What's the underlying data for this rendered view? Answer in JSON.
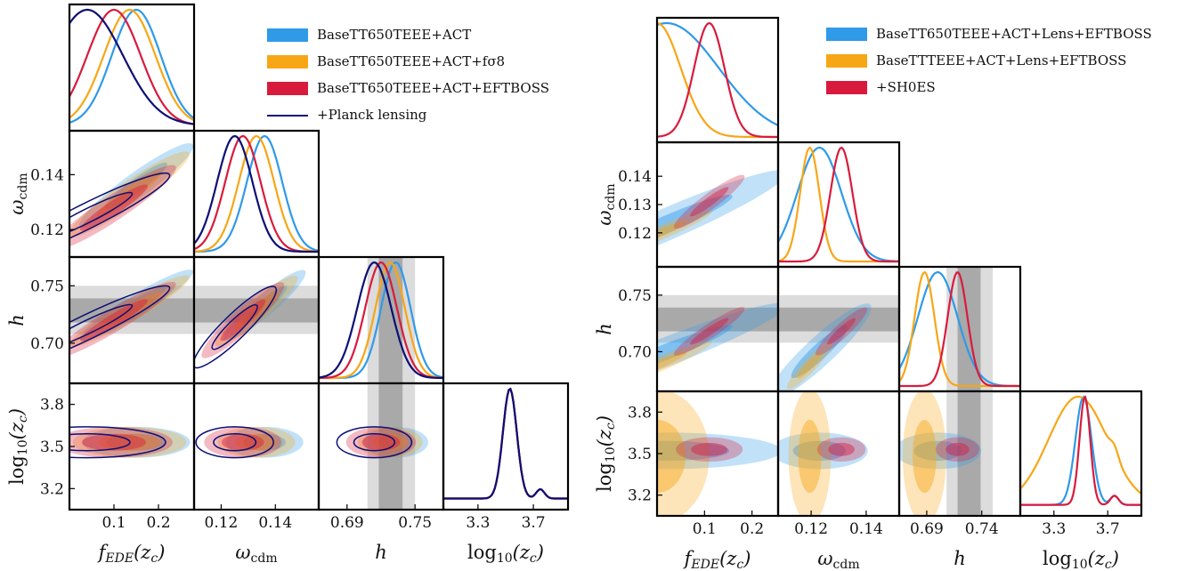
{
  "colors": {
    "blue": "#2e9ae8",
    "orange": "#f7a616",
    "red": "#d81b3c",
    "navy": "#0c0f75",
    "band_outer": "#dcdcdc",
    "band_inner": "#a9a9a9"
  },
  "chart_data": [
    {
      "type": "corner",
      "parameters": [
        "f_EDE(z_c)",
        "omega_cdm",
        "h",
        "log10(z_c)"
      ],
      "axis_labels": {
        "f_EDE": "fEDE(zc)",
        "omega_cdm": "ωcdm",
        "h": "h",
        "log10_zc": "log10(zc)"
      },
      "ranges": {
        "f_EDE": [
          0.0,
          0.28
        ],
        "omega_cdm": [
          0.11,
          0.156
        ],
        "h": [
          0.665,
          0.775
        ],
        "log10_zc": [
          3.05,
          3.95
        ]
      },
      "ticks": {
        "f_EDE": [
          {
            "v": 0.1,
            "t": "0.1"
          },
          {
            "v": 0.2,
            "t": "0.2"
          }
        ],
        "omega_cdm": [
          {
            "v": 0.12,
            "t": "0.12"
          },
          {
            "v": 0.14,
            "t": "0.14"
          }
        ],
        "h": [
          {
            "v": 0.69,
            "t": "0.69"
          },
          {
            "v": 0.75,
            "t": "0.75"
          }
        ],
        "h_y": [
          {
            "v": 0.7,
            "t": "0.70"
          },
          {
            "v": 0.75,
            "t": "0.75"
          }
        ],
        "log10_zc": [
          {
            "v": 3.3,
            "t": "3.3"
          },
          {
            "v": 3.7,
            "t": "3.7"
          }
        ],
        "log10_zc_y": [
          {
            "v": 3.2,
            "t": "3.2"
          },
          {
            "v": 3.5,
            "t": "3.5"
          },
          {
            "v": 3.8,
            "t": "3.8"
          }
        ]
      },
      "prior_band_h": {
        "inner": [
          0.718,
          0.739
        ],
        "outer": [
          0.708,
          0.75
        ]
      },
      "legend": [
        {
          "label": "BaseTT650TEEE+ACT",
          "style": "patch",
          "color": "blue"
        },
        {
          "label": "BaseTT650TEEE+ACT+fσ8",
          "style": "patch",
          "color": "orange"
        },
        {
          "label": "BaseTT650TEEE+ACT+EFTBOSS",
          "style": "patch",
          "color": "red"
        },
        {
          "label": "+Planck lensing",
          "style": "line",
          "color": "navy"
        }
      ],
      "series": [
        {
          "name": "BaseTT650TEEE+ACT",
          "color": "blue",
          "mean": {
            "f_EDE": 0.15,
            "omega_cdm": 0.136,
            "h": 0.733,
            "log10_zc": 3.53
          },
          "sigma": {
            "f_EDE": 0.055,
            "omega_cdm": 0.0065,
            "h": 0.013,
            "log10_zc": 0.05
          }
        },
        {
          "name": "BaseTT650TEEE+ACT+fσ8",
          "color": "orange",
          "mean": {
            "f_EDE": 0.135,
            "omega_cdm": 0.133,
            "h": 0.728,
            "log10_zc": 3.53
          },
          "sigma": {
            "f_EDE": 0.058,
            "omega_cdm": 0.0065,
            "h": 0.013,
            "log10_zc": 0.05
          }
        },
        {
          "name": "BaseTT650TEEE+ACT+EFTBOSS",
          "color": "red",
          "mean": {
            "f_EDE": 0.1,
            "omega_cdm": 0.128,
            "h": 0.72,
            "log10_zc": 3.53
          },
          "sigma": {
            "f_EDE": 0.06,
            "omega_cdm": 0.0065,
            "h": 0.014,
            "log10_zc": 0.05
          }
        },
        {
          "name": "+Planck lensing",
          "color": "navy",
          "mean": {
            "f_EDE": 0.04,
            "omega_cdm": 0.125,
            "h": 0.714,
            "log10_zc": 3.53
          },
          "sigma": {
            "f_EDE": 0.08,
            "omega_cdm": 0.0065,
            "h": 0.015,
            "log10_zc": 0.05
          }
        }
      ]
    },
    {
      "type": "corner",
      "parameters": [
        "f_EDE(z_c)",
        "omega_cdm",
        "h",
        "log10(z_c)"
      ],
      "axis_labels": {
        "f_EDE": "fEDE(zc)",
        "omega_cdm": "ωcdm",
        "h": "h",
        "log10_zc": "log10(zc)"
      },
      "ranges": {
        "f_EDE": [
          0.0,
          0.255
        ],
        "omega_cdm": [
          0.108,
          0.152
        ],
        "h": [
          0.665,
          0.775
        ],
        "log10_zc": [
          3.05,
          3.95
        ]
      },
      "ticks": {
        "f_EDE": [
          {
            "v": 0.1,
            "t": "0.1"
          },
          {
            "v": 0.2,
            "t": "0.2"
          }
        ],
        "omega_cdm": [
          {
            "v": 0.12,
            "t": "0.12"
          },
          {
            "v": 0.14,
            "t": "0.14"
          }
        ],
        "omega_cdm_y": [
          {
            "v": 0.12,
            "t": "0.12"
          },
          {
            "v": 0.13,
            "t": "0.13"
          },
          {
            "v": 0.14,
            "t": "0.14"
          }
        ],
        "h": [
          {
            "v": 0.69,
            "t": "0.69"
          },
          {
            "v": 0.74,
            "t": "0.74"
          }
        ],
        "h_y": [
          {
            "v": 0.7,
            "t": "0.70"
          },
          {
            "v": 0.75,
            "t": "0.75"
          }
        ],
        "log10_zc": [
          {
            "v": 3.3,
            "t": "3.3"
          },
          {
            "v": 3.7,
            "t": "3.7"
          }
        ],
        "log10_zc_y": [
          {
            "v": 3.2,
            "t": "3.2"
          },
          {
            "v": 3.5,
            "t": "3.5"
          },
          {
            "v": 3.8,
            "t": "3.8"
          }
        ]
      },
      "prior_band_h": {
        "inner": [
          0.718,
          0.739
        ],
        "outer": [
          0.708,
          0.75
        ]
      },
      "legend": [
        {
          "label": "BaseTT650TEEE+ACT+Lens+EFTBOSS",
          "style": "patch",
          "color": "blue"
        },
        {
          "label": "BaseTTTEEE+ACT+Lens+EFTBOSS",
          "style": "patch",
          "color": "orange"
        },
        {
          "label": "+SH0ES",
          "style": "patch",
          "color": "red"
        }
      ],
      "series": [
        {
          "name": "BaseTT650TEEE+ACT+Lens+EFTBOSS",
          "color": "blue",
          "mean": {
            "f_EDE": 0.02,
            "omega_cdm": 0.123,
            "h": 0.7,
            "log10_zc": 3.52
          },
          "sigma": {
            "f_EDE": 0.11,
            "omega_cdm": 0.008,
            "h": 0.018,
            "log10_zc": 0.06
          }
        },
        {
          "name": "BaseTTTEEE+ACT+Lens+EFTBOSS",
          "color": "orange",
          "mean": {
            "f_EDE": 0.0,
            "omega_cdm": 0.1195,
            "h": 0.688,
            "log10_zc": 3.48
          },
          "sigma": {
            "f_EDE": 0.05,
            "omega_cdm": 0.0035,
            "h": 0.009,
            "log10_zc": 0.22
          }
        },
        {
          "name": "+SH0ES",
          "color": "red",
          "mean": {
            "f_EDE": 0.11,
            "omega_cdm": 0.131,
            "h": 0.718,
            "log10_zc": 3.53
          },
          "sigma": {
            "f_EDE": 0.032,
            "omega_cdm": 0.004,
            "h": 0.009,
            "log10_zc": 0.04
          }
        }
      ]
    }
  ]
}
